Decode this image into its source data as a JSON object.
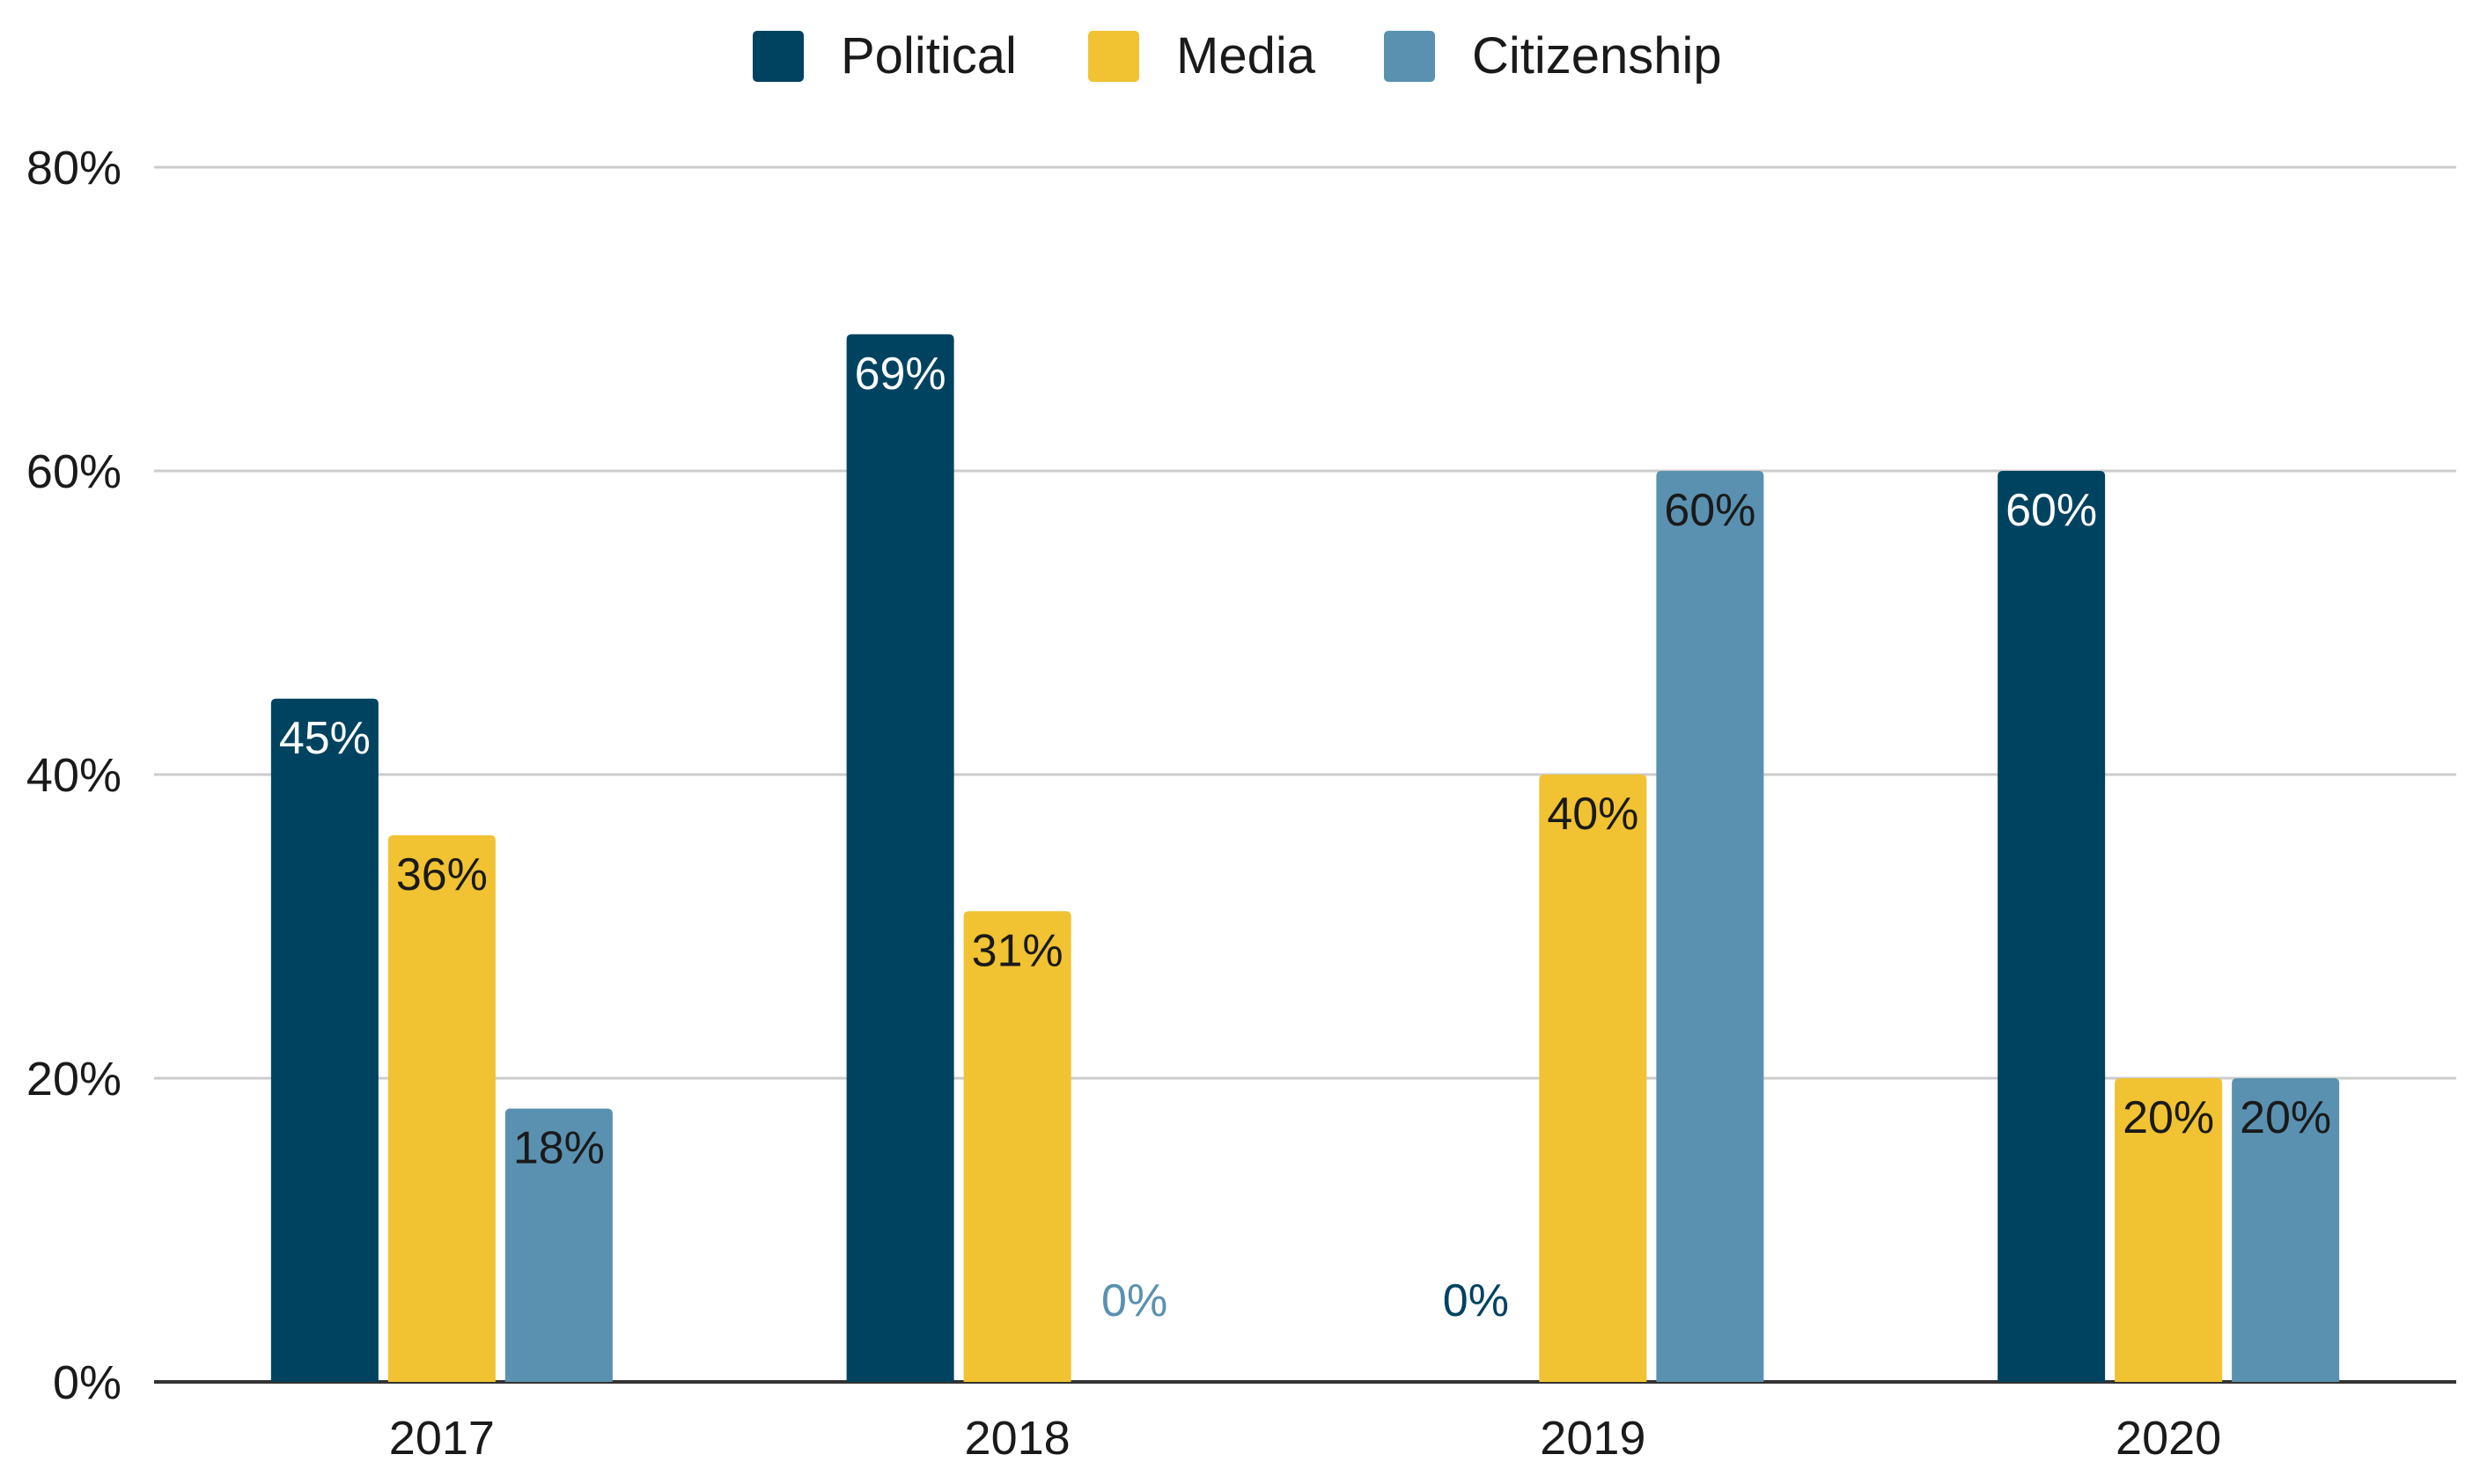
{
  "chart_data": {
    "type": "bar",
    "title": "",
    "xlabel": "",
    "ylabel": "",
    "categories": [
      "2017",
      "2018",
      "2019",
      "2020"
    ],
    "series": [
      {
        "name": "Political",
        "color": "#004360",
        "values": [
          45,
          69,
          0,
          60
        ],
        "labels": [
          "45%",
          "69%",
          "0%",
          "60%"
        ],
        "label_color": "#ffffff"
      },
      {
        "name": "Media",
        "color": "#f1c232",
        "values": [
          36,
          31,
          40,
          20
        ],
        "labels": [
          "36%",
          "31%",
          "40%",
          "20%"
        ],
        "label_color": "#1a1a1a"
      },
      {
        "name": "Citizenship",
        "color": "#5a91b0",
        "values": [
          18,
          0,
          60,
          20
        ],
        "labels": [
          "18%",
          "0%",
          "60%",
          "20%"
        ],
        "label_color": "#1a1a1a"
      }
    ],
    "ylim": [
      0,
      80
    ],
    "yticks": [
      0,
      20,
      40,
      60,
      80
    ],
    "ytick_labels": [
      "0%",
      "20%",
      "40%",
      "60%",
      "80%"
    ],
    "grid": true,
    "legend_position": "top-center",
    "colors": {
      "gridline": "#cccccc",
      "axis": "#333333"
    }
  }
}
